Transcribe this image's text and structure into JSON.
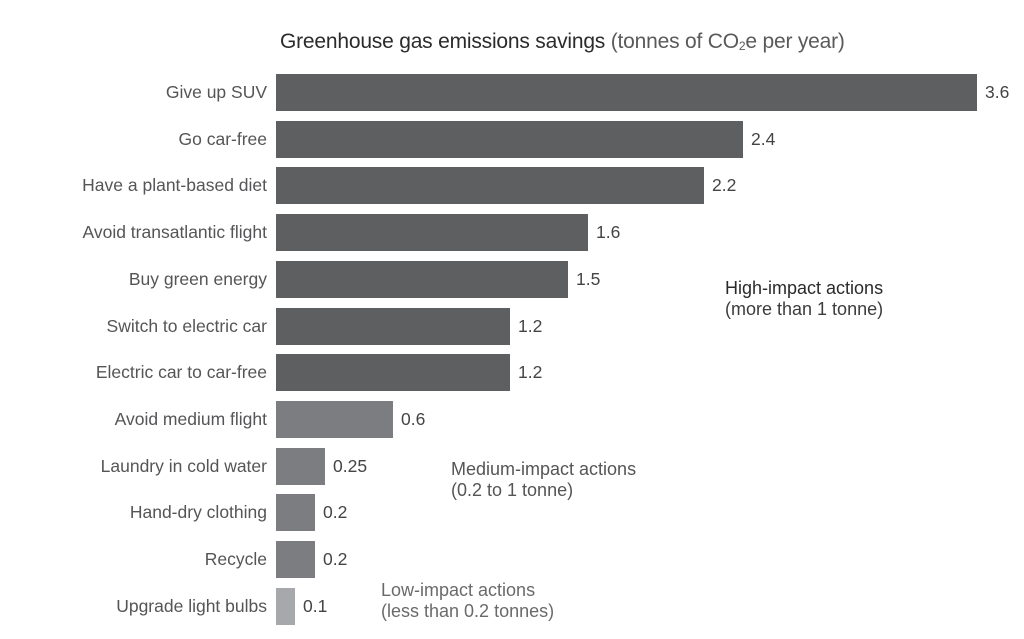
{
  "chart_data": {
    "type": "bar",
    "orientation": "horizontal",
    "title": "Greenhouse gas emissions savings",
    "title_unit_prefix": "(tonnes of CO",
    "title_unit_sub": "2",
    "title_unit_suffix": "e per year)",
    "xlabel": "tonnes of CO2e per year",
    "ylabel": "",
    "xlim": [
      0,
      3.6
    ],
    "grid": false,
    "legend": "none",
    "categories": [
      "Give up SUV",
      "Go car-free",
      "Have a plant-based diet",
      "Avoid transatlantic flight",
      "Buy green energy",
      "Switch to electric car",
      "Electric car to car-free",
      "Avoid medium flight",
      "Laundry in cold water",
      "Hand-dry clothing",
      "Recycle",
      "Upgrade light bulbs"
    ],
    "values": [
      3.6,
      2.4,
      2.2,
      1.6,
      1.5,
      1.2,
      1.2,
      0.6,
      0.25,
      0.2,
      0.2,
      0.1
    ],
    "value_labels": [
      "3.6",
      "2.4",
      "2.2",
      "1.6",
      "1.5",
      "1.2",
      "1.2",
      "0.6",
      "0.25",
      "0.2",
      "0.2",
      "0.1"
    ],
    "impact": [
      "high",
      "high",
      "high",
      "high",
      "high",
      "high",
      "high",
      "medium",
      "medium",
      "medium",
      "medium",
      "low"
    ],
    "colors": {
      "high": "#5e5f61",
      "medium": "#7c7d80",
      "low": "#a7a8ab"
    },
    "annotations": [
      {
        "group": "high",
        "title": "High-impact actions",
        "subtitle": "(more than 1 tonne)"
      },
      {
        "group": "medium",
        "title": "Medium-impact actions",
        "subtitle": "(0.2 to 1 tonne)"
      },
      {
        "group": "low",
        "title": "Low-impact actions",
        "subtitle": "(less than 0.2 tonnes)"
      }
    ]
  }
}
